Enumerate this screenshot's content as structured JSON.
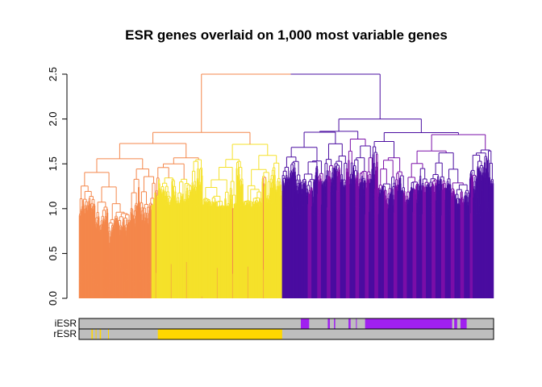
{
  "chart_data": {
    "type": "dendrogram",
    "title": "ESR genes overlaid on 1,000 most variable genes",
    "xlabel": "",
    "ylabel": "",
    "leaf_count": 1000,
    "ylim": [
      0,
      2.5
    ],
    "yticks": [
      0.0,
      0.5,
      1.0,
      1.5,
      2.0,
      2.5
    ],
    "ytick_labels": [
      "0.0",
      "0.5",
      "1.0",
      "1.5",
      "2.0",
      "2.5"
    ],
    "grid": false,
    "root_height": 2.5,
    "clusters": [
      {
        "name": "",
        "color": "#F4874B",
        "leaf_start": 0,
        "leaf_end": 175,
        "join_height": 1.85
      },
      {
        "name": "",
        "color": "#F5E12A",
        "leaf_start": 175,
        "leaf_end": 490,
        "join_height": 1.45
      },
      {
        "name": "",
        "color": "#7A0EA8",
        "leaf_start": 490,
        "leaf_end": 1000,
        "join_height": 2.0
      },
      {
        "name": "",
        "color": "#4A0CA0",
        "leaf_start": 490,
        "leaf_end": 1000,
        "join_height": 2.0
      }
    ],
    "color_bands": [
      {
        "label": "iESR",
        "base_color": "#BEBEBE",
        "highlight_color": "#A020F0",
        "highlight_leaf_ranges": [
          [
            535,
            555
          ],
          [
            600,
            605
          ],
          [
            615,
            618
          ],
          [
            650,
            655
          ],
          [
            668,
            670
          ],
          [
            690,
            900
          ],
          [
            905,
            912
          ],
          [
            920,
            935
          ]
        ]
      },
      {
        "label": "rESR",
        "base_color": "#BEBEBE",
        "highlight_color": "#FFD700",
        "highlight_leaf_ranges": [
          [
            30,
            33
          ],
          [
            40,
            42
          ],
          [
            50,
            53
          ],
          [
            70,
            72
          ],
          [
            190,
            490
          ]
        ]
      }
    ]
  }
}
